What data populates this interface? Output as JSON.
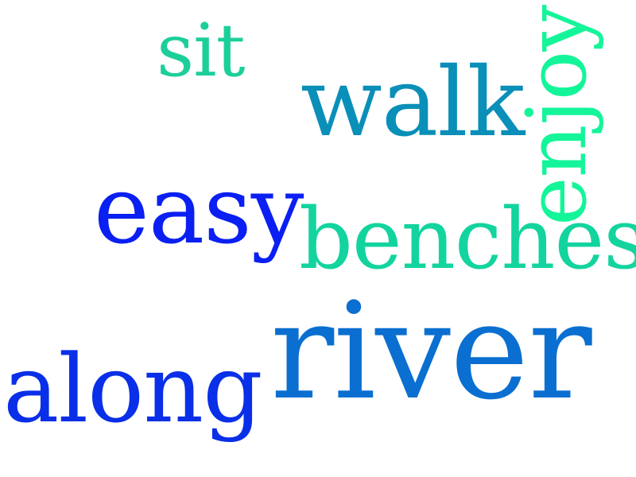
{
  "cloud": {
    "background": "#ffffff",
    "words": {
      "sit": {
        "text": "sit",
        "color": "#1ccf9a"
      },
      "walk": {
        "text": "walk",
        "color": "#0a8fb8"
      },
      "enjoy": {
        "text": "enjoy",
        "color": "#14f59a"
      },
      "easy": {
        "text": "easy",
        "color": "#0a1ff2"
      },
      "benches": {
        "text": "benches",
        "color": "#13d49e"
      },
      "along": {
        "text": "along",
        "color": "#0a2fe8"
      },
      "river": {
        "text": "river",
        "color": "#0a6fd0"
      }
    }
  }
}
